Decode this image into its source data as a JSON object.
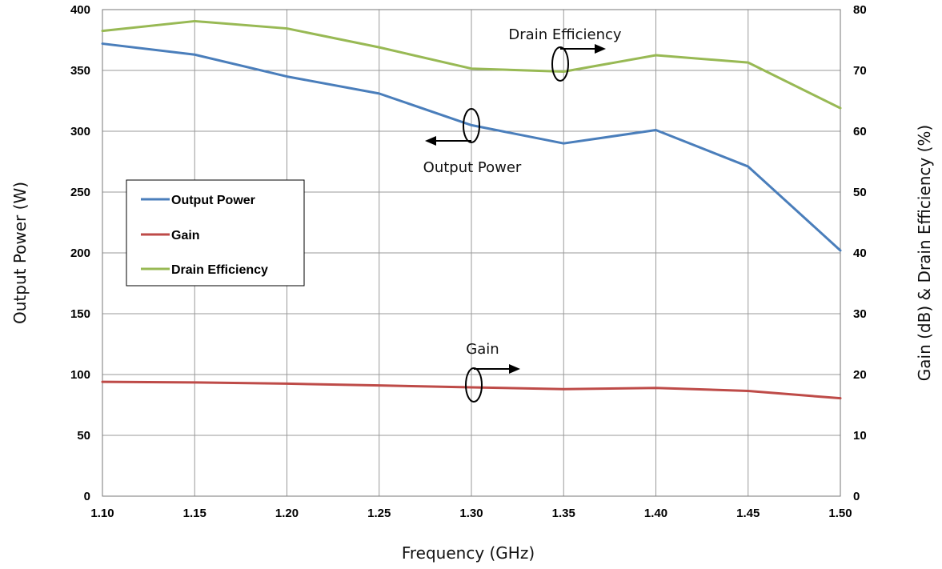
{
  "chart_data": {
    "type": "line",
    "xlabel": "Frequency (GHz)",
    "ylabel_left": "Output Power (W)",
    "ylabel_right": "Gain (dB) & Drain Efficiency (%)",
    "x": [
      1.1,
      1.15,
      1.2,
      1.25,
      1.3,
      1.35,
      1.4,
      1.45,
      1.5
    ],
    "x_tick_labels": [
      "1.10",
      "1.15",
      "1.20",
      "1.25",
      "1.30",
      "1.35",
      "1.40",
      "1.45",
      "1.50"
    ],
    "xlim": [
      1.1,
      1.5
    ],
    "ylim_left": [
      0,
      400
    ],
    "ylim_right": [
      0,
      80
    ],
    "y_left_ticks": [
      "0",
      "50",
      "100",
      "150",
      "200",
      "250",
      "300",
      "350",
      "400"
    ],
    "y_right_ticks": [
      "0",
      "10",
      "20",
      "30",
      "40",
      "50",
      "60",
      "70",
      "80"
    ],
    "grid": true,
    "legend_position": "center-left",
    "series": [
      {
        "name": "Output Power",
        "axis": "left",
        "color": "#4a7ebb",
        "values": [
          372,
          363,
          345,
          331,
          305,
          290,
          301,
          271,
          202
        ]
      },
      {
        "name": "Gain",
        "axis": "right",
        "color": "#be4b48",
        "values": [
          18.8,
          18.7,
          18.5,
          18.2,
          17.9,
          17.6,
          17.8,
          17.3,
          16.1
        ]
      },
      {
        "name": "Drain Efficiency",
        "axis": "right",
        "color": "#98b954",
        "values": [
          76.5,
          78.1,
          76.9,
          73.8,
          70.3,
          69.8,
          72.5,
          71.3,
          63.8
        ]
      }
    ],
    "annotations": [
      {
        "text": "Drain Efficiency",
        "series": "Drain Efficiency",
        "arrow": "right"
      },
      {
        "text": "Output Power",
        "series": "Output Power",
        "arrow": "left"
      },
      {
        "text": "Gain",
        "series": "Gain",
        "arrow": "right"
      }
    ]
  }
}
